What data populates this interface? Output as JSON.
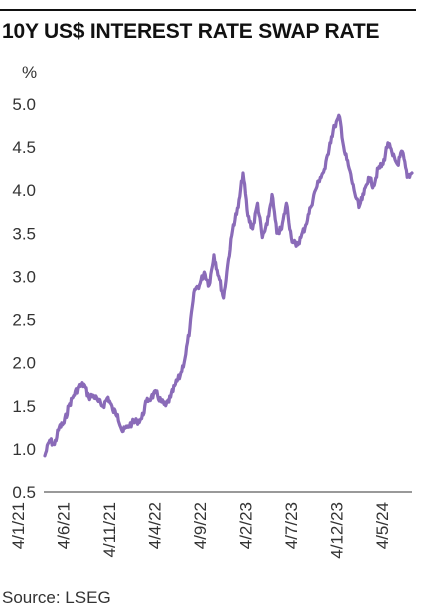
{
  "title": "10Y US$ INTEREST RATE SWAP RATE",
  "source": "Source: LSEG",
  "chart_data": {
    "type": "line",
    "title": "10Y US$ INTEREST RATE SWAP RATE",
    "unit_label": "%",
    "xlabel": "",
    "ylabel": "",
    "ylim": [
      0.5,
      5.0
    ],
    "yticks": [
      0.5,
      1.0,
      1.5,
      2.0,
      2.5,
      3.0,
      3.5,
      4.0,
      4.5,
      5.0
    ],
    "ytick_labels": [
      "0.5",
      "1.0",
      "1.5",
      "2.0",
      "2.5",
      "3.0",
      "3.5",
      "4.0",
      "4.5",
      "5.0"
    ],
    "xticks": [
      "4/1/21",
      "4/6/21",
      "4/11/21",
      "4/4/22",
      "4/9/22",
      "4/2/23",
      "4/7/23",
      "4/12/23",
      "4/5/24"
    ],
    "line_color": "#8a6bb8",
    "grid": false,
    "series": [
      {
        "values": [
          0.92,
          1.1,
          1.05,
          1.25,
          1.3,
          1.5,
          1.62,
          1.72,
          1.75,
          1.6,
          1.62,
          1.55,
          1.5,
          1.6,
          1.45,
          1.4,
          1.2,
          1.25,
          1.3,
          1.32,
          1.35,
          1.55,
          1.6,
          1.65,
          1.55,
          1.5,
          1.6,
          1.75,
          1.85,
          2.05,
          2.4,
          2.85,
          2.9,
          3.05,
          2.9,
          3.25,
          3.0,
          2.75,
          3.2,
          3.6,
          3.8,
          4.2,
          3.7,
          3.55,
          3.85,
          3.45,
          3.6,
          3.95,
          3.5,
          3.55,
          3.85,
          3.45,
          3.35,
          3.45,
          3.6,
          3.8,
          4.0,
          4.15,
          4.25,
          4.55,
          4.75,
          4.85,
          4.45,
          4.25,
          4.0,
          3.8,
          3.95,
          4.15,
          4.05,
          4.25,
          4.3,
          4.55,
          4.4,
          4.3,
          4.45,
          4.15,
          4.2
        ]
      }
    ]
  }
}
